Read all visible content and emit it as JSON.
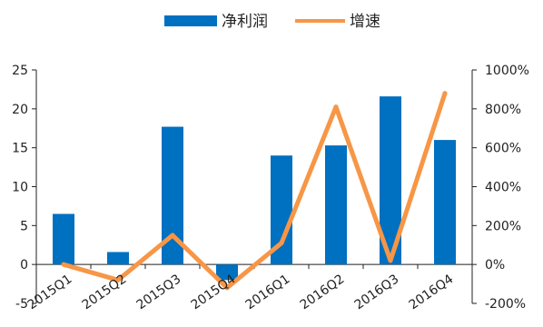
{
  "chart_data": {
    "type": "bar",
    "categories": [
      "2015Q1",
      "2015Q2",
      "2015Q3",
      "2015Q4",
      "2016Q1",
      "2016Q2",
      "2016Q3",
      "2016Q4"
    ],
    "series": [
      {
        "name": "净利润",
        "type": "bar",
        "axis": "left",
        "color": "#0070C0",
        "values": [
          6.5,
          1.6,
          17.7,
          -2.0,
          14.0,
          15.3,
          21.6,
          16.0
        ]
      },
      {
        "name": "增速",
        "type": "line",
        "axis": "right",
        "color": "#F79646",
        "values": [
          0,
          -80,
          150,
          -120,
          110,
          810,
          20,
          880
        ]
      }
    ],
    "y_left": {
      "min": -5,
      "max": 25,
      "ticks": [
        "-5",
        "0",
        "5",
        "10",
        "15",
        "20",
        "25"
      ]
    },
    "y_right": {
      "min": -200,
      "max": 1000,
      "ticks": [
        "-200%",
        "0%",
        "200%",
        "400%",
        "600%",
        "800%",
        "1000%"
      ]
    },
    "legend_position": "top-center",
    "grid": false,
    "tick_label_colors": {
      "negative": "#C00000",
      "default": "#222222"
    }
  }
}
